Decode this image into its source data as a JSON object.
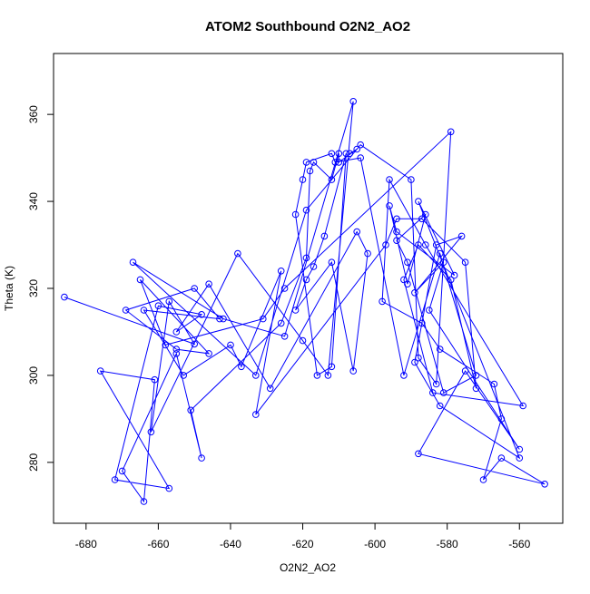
{
  "chart_data": {
    "type": "line",
    "title": "ATOM2 Southbound O2N2_AO2",
    "xlabel": "O2N2_AO2",
    "ylabel": "Theta (K)",
    "xlim": [
      -689,
      -548
    ],
    "ylim": [
      266,
      374
    ],
    "grid": false,
    "xticks": [
      -680,
      -660,
      -640,
      -620,
      -600,
      -580,
      -560
    ],
    "yticks": [
      280,
      300,
      320,
      340,
      360
    ],
    "xtick_labels": [
      "-680",
      "-660",
      "-640",
      "-620",
      "-600",
      "-580",
      "-560"
    ],
    "ytick_labels": [
      "280",
      "300",
      "320",
      "340",
      "360"
    ],
    "line_color": "#0000ff",
    "marker": "open-circle",
    "series": [
      {
        "points": [
          [
            -686,
            318
          ],
          [
            -650,
            307.2
          ],
          [
            -657,
            317
          ],
          [
            -662,
            287
          ],
          [
            -638,
            328
          ],
          [
            -620,
            308
          ],
          [
            -613,
            300
          ],
          [
            -606,
            363
          ],
          [
            -625,
            309
          ],
          [
            -642,
            313
          ],
          [
            -667,
            326
          ],
          [
            -633,
            300
          ],
          [
            -619,
            338
          ],
          [
            -604,
            353
          ],
          [
            -590,
            345
          ],
          [
            -588,
            304
          ],
          [
            -583,
            298
          ],
          [
            -579,
            356
          ],
          [
            -625,
            320
          ],
          [
            -631,
            313
          ],
          [
            -658,
            307
          ],
          [
            -665,
            322
          ],
          [
            -646,
            305
          ],
          [
            -655,
            306
          ],
          [
            -669,
            315
          ],
          [
            -650,
            320
          ],
          [
            -643,
            313
          ],
          [
            -664,
            315
          ],
          [
            -653,
            300
          ],
          [
            -640,
            307
          ],
          [
            -637,
            302
          ],
          [
            -626,
            324
          ],
          [
            -633,
            291
          ],
          [
            -597,
            330
          ],
          [
            -594,
            336
          ],
          [
            -587,
            336
          ],
          [
            -575,
            326
          ],
          [
            -572,
            297
          ],
          [
            -579,
            322
          ],
          [
            -588,
            330
          ],
          [
            -592,
            322
          ],
          [
            -584,
            296
          ],
          [
            -559,
            293
          ],
          [
            -586,
            330
          ],
          [
            -596,
            345
          ],
          [
            -598,
            317
          ],
          [
            -587,
            312
          ],
          [
            -582,
            306
          ],
          [
            -567,
            298
          ],
          [
            -565,
            290
          ],
          [
            -570,
            276
          ],
          [
            -565,
            281
          ],
          [
            -553,
            275
          ],
          [
            -588,
            282
          ],
          [
            -575,
            301
          ],
          [
            -560,
            283
          ],
          [
            -585,
            315
          ],
          [
            -581,
            326
          ],
          [
            -589,
            319
          ],
          [
            -576,
            332
          ],
          [
            -583,
            330
          ],
          [
            -589,
            303
          ],
          [
            -582,
            293
          ],
          [
            -560,
            281
          ],
          [
            -588,
            340
          ],
          [
            -578,
            323
          ],
          [
            -594,
            333
          ],
          [
            -596,
            339
          ],
          [
            -591,
            321
          ],
          [
            -586,
            337
          ],
          [
            -594,
            331
          ],
          [
            -591,
            326
          ],
          [
            -581,
            296
          ],
          [
            -572,
            300
          ],
          [
            -582,
            328
          ],
          [
            -592,
            300
          ],
          [
            -604,
            350
          ],
          [
            -611,
            349
          ],
          [
            -612,
            351
          ],
          [
            -619,
            349
          ],
          [
            -620,
            345
          ],
          [
            -622,
            337
          ],
          [
            -616,
            300
          ],
          [
            -612,
            302
          ],
          [
            -608,
            351
          ],
          [
            -614,
            332
          ],
          [
            -617,
            325
          ],
          [
            -619,
            322
          ],
          [
            -622,
            315
          ],
          [
            -612,
            326
          ],
          [
            -606,
            301
          ],
          [
            -602,
            328
          ],
          [
            -605,
            333
          ],
          [
            -629,
            297
          ],
          [
            -646,
            321
          ],
          [
            -655,
            310
          ],
          [
            -648,
            314
          ],
          [
            -660,
            316
          ],
          [
            -672,
            276
          ],
          [
            -657,
            274
          ],
          [
            -676,
            301
          ],
          [
            -661,
            299
          ],
          [
            -664,
            271
          ],
          [
            -670,
            278
          ],
          [
            -655,
            305
          ],
          [
            -648,
            281
          ],
          [
            -651,
            292
          ],
          [
            -626,
            312
          ],
          [
            -619,
            327
          ],
          [
            -618,
            347
          ],
          [
            -617,
            349
          ],
          [
            -612,
            345
          ],
          [
            -610,
            351
          ],
          [
            -610,
            349
          ],
          [
            -605,
            352
          ],
          [
            -607,
            351
          ]
        ]
      }
    ]
  }
}
